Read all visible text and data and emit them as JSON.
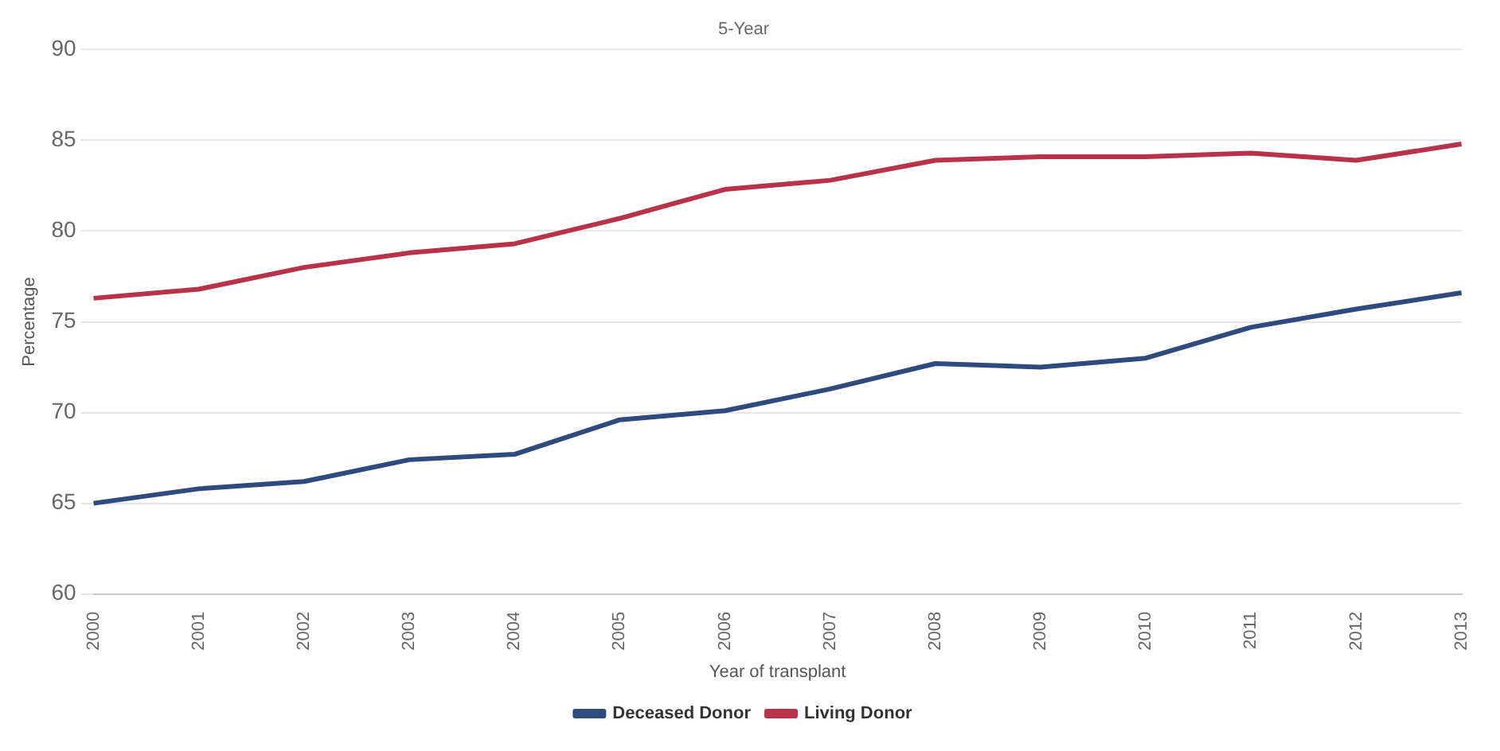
{
  "chart_data": {
    "type": "line",
    "title": "5-Year",
    "xlabel": "Year of transplant",
    "ylabel": "Percentage",
    "categories": [
      "2000",
      "2001",
      "2002",
      "2003",
      "2004",
      "2005",
      "2006",
      "2007",
      "2008",
      "2009",
      "2010",
      "2011",
      "2012",
      "2013"
    ],
    "series": [
      {
        "name": "Deceased Donor",
        "color": "#2f4a7c",
        "values": [
          65.0,
          65.8,
          66.2,
          67.4,
          67.7,
          69.6,
          70.1,
          71.3,
          72.7,
          72.5,
          73.0,
          74.7,
          75.7,
          76.6
        ]
      },
      {
        "name": "Living Donor",
        "color": "#b8334a",
        "values": [
          76.3,
          76.8,
          78.0,
          78.8,
          79.3,
          80.7,
          82.3,
          82.8,
          83.9,
          84.1,
          84.1,
          84.3,
          83.9,
          84.8
        ]
      }
    ],
    "ylim": [
      60,
      90
    ],
    "yticks": [
      60,
      65,
      70,
      75,
      80,
      85,
      90
    ],
    "grid": "y",
    "legend": "bottom",
    "marker": "none",
    "line_style": "solid"
  }
}
